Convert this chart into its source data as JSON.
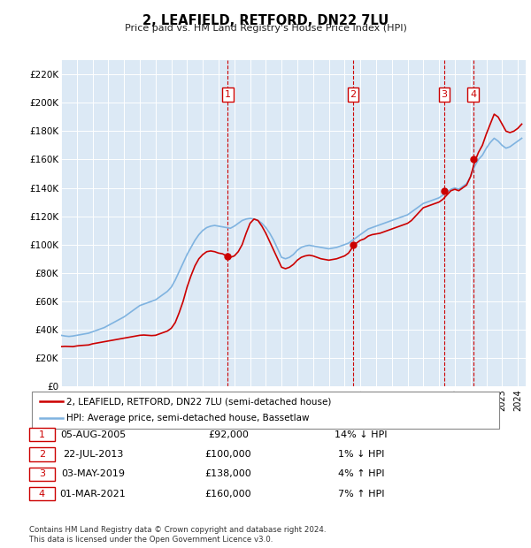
{
  "title": "2, LEAFIELD, RETFORD, DN22 7LU",
  "subtitle": "Price paid vs. HM Land Registry's House Price Index (HPI)",
  "ytick_values": [
    0,
    20000,
    40000,
    60000,
    80000,
    100000,
    120000,
    140000,
    160000,
    180000,
    200000,
    220000
  ],
  "ylim": [
    0,
    230000
  ],
  "xlim_start": 1995.0,
  "xlim_end": 2024.5,
  "bg_color": "#dce9f5",
  "hpi_color": "#7fb3e0",
  "price_color": "#cc0000",
  "vline_color": "#cc0000",
  "grid_color": "#ffffff",
  "legend_entries": [
    "2, LEAFIELD, RETFORD, DN22 7LU (semi-detached house)",
    "HPI: Average price, semi-detached house, Bassetlaw"
  ],
  "transactions": [
    {
      "num": 1,
      "date": "05-AUG-2005",
      "price": 92000,
      "pct": "14%",
      "dir": "↓",
      "year": 2005.58
    },
    {
      "num": 2,
      "date": "22-JUL-2013",
      "price": 100000,
      "pct": "1%",
      "dir": "↓",
      "year": 2013.55
    },
    {
      "num": 3,
      "date": "03-MAY-2019",
      "price": 138000,
      "pct": "4%",
      "dir": "↑",
      "year": 2019.33
    },
    {
      "num": 4,
      "date": "01-MAR-2021",
      "price": 160000,
      "pct": "7%",
      "dir": "↑",
      "year": 2021.17
    }
  ],
  "footnote1": "Contains HM Land Registry data © Crown copyright and database right 2024.",
  "footnote2": "This data is licensed under the Open Government Licence v3.0.",
  "hpi_data_x": [
    1995.0,
    1995.25,
    1995.5,
    1995.75,
    1996.0,
    1996.25,
    1996.5,
    1996.75,
    1997.0,
    1997.25,
    1997.5,
    1997.75,
    1998.0,
    1998.25,
    1998.5,
    1998.75,
    1999.0,
    1999.25,
    1999.5,
    1999.75,
    2000.0,
    2000.25,
    2000.5,
    2000.75,
    2001.0,
    2001.25,
    2001.5,
    2001.75,
    2002.0,
    2002.25,
    2002.5,
    2002.75,
    2003.0,
    2003.25,
    2003.5,
    2003.75,
    2004.0,
    2004.25,
    2004.5,
    2004.75,
    2005.0,
    2005.25,
    2005.5,
    2005.75,
    2006.0,
    2006.25,
    2006.5,
    2006.75,
    2007.0,
    2007.25,
    2007.5,
    2007.75,
    2008.0,
    2008.25,
    2008.5,
    2008.75,
    2009.0,
    2009.25,
    2009.5,
    2009.75,
    2010.0,
    2010.25,
    2010.5,
    2010.75,
    2011.0,
    2011.25,
    2011.5,
    2011.75,
    2012.0,
    2012.25,
    2012.5,
    2012.75,
    2013.0,
    2013.25,
    2013.5,
    2013.75,
    2014.0,
    2014.25,
    2014.5,
    2014.75,
    2015.0,
    2015.25,
    2015.5,
    2015.75,
    2016.0,
    2016.25,
    2016.5,
    2016.75,
    2017.0,
    2017.25,
    2017.5,
    2017.75,
    2018.0,
    2018.25,
    2018.5,
    2018.75,
    2019.0,
    2019.25,
    2019.5,
    2019.75,
    2020.0,
    2020.25,
    2020.5,
    2020.75,
    2021.0,
    2021.25,
    2021.5,
    2021.75,
    2022.0,
    2022.25,
    2022.5,
    2022.75,
    2023.0,
    2023.25,
    2023.5,
    2023.75,
    2024.0,
    2024.25
  ],
  "hpi_data_y": [
    36000,
    35500,
    35200,
    35500,
    36000,
    36500,
    37000,
    37500,
    38500,
    39500,
    40500,
    41500,
    43000,
    44500,
    46000,
    47500,
    49000,
    51000,
    53000,
    55000,
    57000,
    58000,
    59000,
    60000,
    61000,
    63000,
    65000,
    67000,
    70000,
    75000,
    81000,
    87000,
    93000,
    98000,
    103000,
    107000,
    110000,
    112000,
    113000,
    113500,
    113000,
    112500,
    112000,
    111500,
    113000,
    115000,
    117000,
    118000,
    118500,
    118000,
    117000,
    115000,
    112000,
    108000,
    103000,
    97000,
    91000,
    90000,
    91000,
    93000,
    96000,
    98000,
    99000,
    99500,
    99000,
    98500,
    98000,
    97500,
    97000,
    97500,
    98000,
    99000,
    100000,
    101000,
    103000,
    105000,
    107000,
    109000,
    111000,
    112000,
    113000,
    114000,
    115000,
    116000,
    117000,
    118000,
    119000,
    120000,
    121000,
    123000,
    125000,
    127000,
    129000,
    130000,
    131000,
    132000,
    133000,
    135000,
    137000,
    139000,
    140000,
    139000,
    141000,
    143000,
    148000,
    155000,
    160000,
    163000,
    168000,
    172000,
    175000,
    173000,
    170000,
    168000,
    169000,
    171000,
    173000,
    175000
  ],
  "price_data_x": [
    1995.0,
    1995.25,
    1995.5,
    1995.75,
    1996.0,
    1996.25,
    1996.5,
    1996.75,
    1997.0,
    1997.25,
    1997.5,
    1997.75,
    1998.0,
    1998.25,
    1998.5,
    1998.75,
    1999.0,
    1999.25,
    1999.5,
    1999.75,
    2000.0,
    2000.25,
    2000.5,
    2000.75,
    2001.0,
    2001.25,
    2001.5,
    2001.75,
    2002.0,
    2002.25,
    2002.5,
    2002.75,
    2003.0,
    2003.25,
    2003.5,
    2003.75,
    2004.0,
    2004.25,
    2004.5,
    2004.75,
    2005.0,
    2005.25,
    2005.5,
    2005.75,
    2006.0,
    2006.25,
    2006.5,
    2006.75,
    2007.0,
    2007.25,
    2007.5,
    2007.75,
    2008.0,
    2008.25,
    2008.5,
    2008.75,
    2009.0,
    2009.25,
    2009.5,
    2009.75,
    2010.0,
    2010.25,
    2010.5,
    2010.75,
    2011.0,
    2011.25,
    2011.5,
    2011.75,
    2012.0,
    2012.25,
    2012.5,
    2012.75,
    2013.0,
    2013.25,
    2013.5,
    2013.75,
    2014.0,
    2014.25,
    2014.5,
    2014.75,
    2015.0,
    2015.25,
    2015.5,
    2015.75,
    2016.0,
    2016.25,
    2016.5,
    2016.75,
    2017.0,
    2017.25,
    2017.5,
    2017.75,
    2018.0,
    2018.25,
    2018.5,
    2018.75,
    2019.0,
    2019.25,
    2019.5,
    2019.75,
    2020.0,
    2020.25,
    2020.5,
    2020.75,
    2021.0,
    2021.25,
    2021.5,
    2021.75,
    2022.0,
    2022.25,
    2022.5,
    2022.75,
    2023.0,
    2023.25,
    2023.5,
    2023.75,
    2024.0,
    2024.25
  ],
  "price_data_y": [
    28000,
    28200,
    28100,
    28000,
    28500,
    28800,
    29000,
    29200,
    30000,
    30500,
    31000,
    31500,
    32000,
    32500,
    33000,
    33500,
    34000,
    34500,
    35000,
    35500,
    36000,
    36200,
    36000,
    35800,
    36000,
    37000,
    38000,
    39000,
    41000,
    45000,
    52000,
    60000,
    70000,
    78000,
    85000,
    90000,
    93000,
    95000,
    95500,
    95000,
    94000,
    93500,
    92000,
    91000,
    92000,
    95000,
    100000,
    108000,
    115000,
    118000,
    117000,
    113000,
    108000,
    102000,
    96000,
    90000,
    84000,
    83000,
    84000,
    86000,
    89000,
    91000,
    92000,
    92500,
    92000,
    91000,
    90000,
    89500,
    89000,
    89500,
    90000,
    91000,
    92000,
    94000,
    98000,
    101000,
    103000,
    104000,
    106000,
    107000,
    107500,
    108000,
    109000,
    110000,
    111000,
    112000,
    113000,
    114000,
    115000,
    117000,
    120000,
    123000,
    126000,
    127000,
    128000,
    129000,
    130000,
    132000,
    135000,
    138000,
    139000,
    138000,
    140000,
    142000,
    148000,
    158000,
    165000,
    170000,
    178000,
    185000,
    192000,
    190000,
    185000,
    180000,
    179000,
    180000,
    182000,
    185000
  ]
}
